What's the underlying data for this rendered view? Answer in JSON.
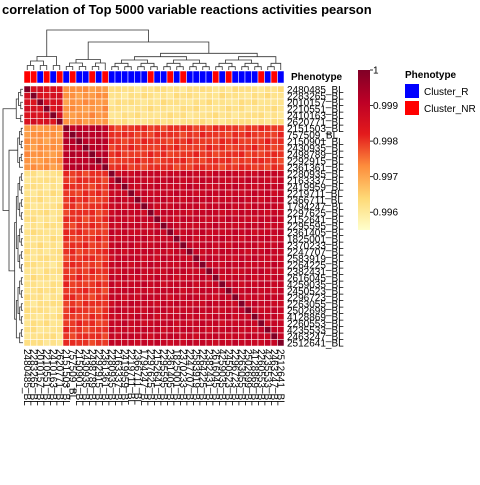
{
  "chart_data": {
    "type": "heatmap",
    "title": "correlation of Top 5000 variable reactions activities pearson",
    "row_labels": [
      "2480485_BL",
      "2283265_BL",
      "2010157_BL",
      "2210551_BL",
      "2410163_BL",
      "2620771_BL",
      "2151503_BL",
      "757509_BL",
      "2150901_BL",
      "2430935_BL",
      "2498789_BL",
      "2292915_BL",
      "2361361_BL",
      "2280935_BL",
      "2163337_BL",
      "2419959_BL",
      "2219711_BL",
      "2366711_BL",
      "1794247_BL",
      "2297625_BL",
      "2152641_BL",
      "2295595_BL",
      "2361405_BL",
      "1825001_BL",
      "2370233_BL",
      "2247707_BL",
      "2583919_BL",
      "2264225_BL",
      "2382431_BL",
      "2616045_BL",
      "4259035_BL",
      "2450523_BL",
      "2296723_BL",
      "2263055_BL",
      "2502699_BL",
      "4128869_BL",
      "2260553_BL",
      "4235533_BL",
      "2463247_BL",
      "2512641_BL"
    ],
    "col_labels": [
      "2480485_BL",
      "2283265_BL",
      "2010157_BL",
      "2210551_BL",
      "2410163_BL",
      "2620771_BL",
      "2151503_BL",
      "757509_BL",
      "2150901_BL",
      "2430935_BL",
      "2498789_BL",
      "2292915_BL",
      "2361361_BL",
      "2280935_BL",
      "2163337_BL",
      "2419959_BL",
      "2219711_BL",
      "2366711_BL",
      "1794247_BL",
      "2297625_BL",
      "2152641_BL",
      "2295595_BL",
      "2361405_BL",
      "1825001_BL",
      "2370233_BL",
      "2247707_BL",
      "2583919_BL",
      "2264225_BL",
      "2382431_BL",
      "2616045_BL",
      "4259035_BL",
      "2450523_BL",
      "2296723_BL",
      "2263055_BL",
      "2502699_BL",
      "4128869_BL",
      "2260553_BL",
      "4235533_BL",
      "2463247_BL",
      "2512641_BL"
    ],
    "annotation": {
      "name": "Phenotype",
      "values": [
        "NR",
        "NR",
        "R",
        "NR",
        "R",
        "NR",
        "R",
        "NR",
        "R",
        "R",
        "NR",
        "R",
        "NR",
        "R",
        "R",
        "R",
        "R",
        "R",
        "R",
        "NR",
        "R",
        "R",
        "NR",
        "R",
        "NR",
        "R",
        "R",
        "R",
        "R",
        "NR",
        "R",
        "NR",
        "R",
        "R",
        "R",
        "R",
        "NR",
        "R",
        "NR",
        "R"
      ],
      "legend": {
        "title": "Phenotype",
        "entries": [
          {
            "label": "Cluster_R",
            "key": "R",
            "color": "#0000FF"
          },
          {
            "label": "Cluster_NR",
            "key": "NR",
            "color": "#FF0000"
          }
        ]
      }
    },
    "color_scale": {
      "min": 0.9955,
      "max": 1,
      "ticks": [
        "1",
        "0.999",
        "0.998",
        "0.997",
        "0.996"
      ],
      "tick_values": [
        1,
        0.999,
        0.998,
        0.997,
        0.996
      ],
      "colors": [
        "#FFFFCC",
        "#FED976",
        "#FD8D3C",
        "#E31A1C",
        "#BD0026",
        "#800026"
      ]
    },
    "blocks": {
      "group_a": [
        0,
        1,
        2,
        3,
        4,
        5
      ],
      "group_b": [
        6,
        7,
        8,
        9,
        10,
        11,
        12
      ]
    },
    "value_model": {
      "diagonal": 1,
      "within_group_a": 0.9985,
      "within_group_b": 0.99915,
      "cross_a_b": 0.9972,
      "cross_a_c": 0.9962,
      "cross_b_c": 0.998,
      "within_group_c": 0.9989
    },
    "note_grid": true
  }
}
